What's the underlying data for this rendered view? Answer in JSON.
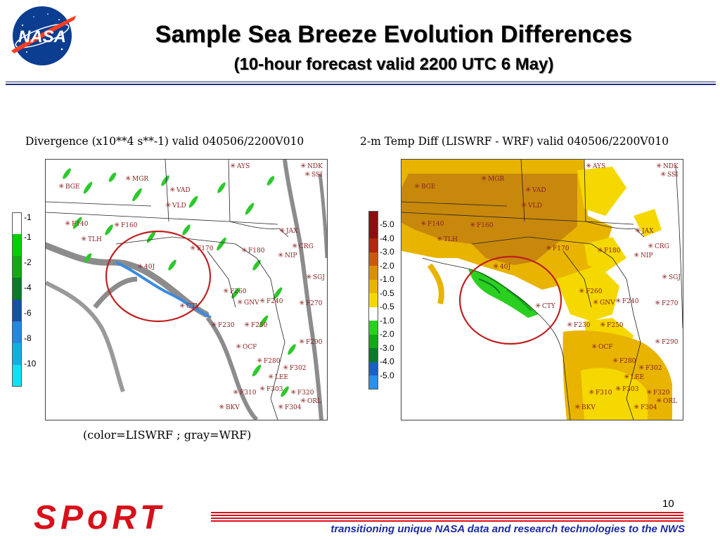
{
  "header": {
    "logo_text": "NASA",
    "title": "Sample Sea Breeze Evolution Differences",
    "subtitle": "(10-hour forecast valid 2200 UTC 6 May)"
  },
  "left_panel": {
    "title": "Divergence (x10**4 s**-1) valid 040506/2200V010",
    "colorbar": {
      "labels": [
        "1",
        "-1",
        "-2",
        "-4",
        "-6",
        "-8",
        "-10"
      ],
      "colors": [
        "#ffffff",
        "#00d000",
        "#14a814",
        "#0c7a2a",
        "#1a50a0",
        "#2288e0",
        "#10b0e0",
        "#10e0f0"
      ]
    }
  },
  "right_panel": {
    "title": "2-m Temp Diff (LISWRF - WRF) valid 040506/2200V010",
    "colorbar": {
      "labels": [
        "5.0",
        "4.0",
        "3.0",
        "2.0",
        "1.0",
        "0.5",
        "-0.5",
        "-1.0",
        "-2.0",
        "-3.0",
        "-4.0",
        "-5.0"
      ],
      "colors": [
        "#8b1010",
        "#b02810",
        "#c85a10",
        "#d9900c",
        "#e8b400",
        "#f5d800",
        "#ffffff",
        "#2ad020",
        "#14a814",
        "#0c7a2a",
        "#1a60c0",
        "#2a90e8"
      ]
    }
  },
  "stations": [
    {
      "id": "AYS"
    },
    {
      "id": "NDK"
    },
    {
      "id": "SSI"
    },
    {
      "id": "MGR"
    },
    {
      "id": "BGE"
    },
    {
      "id": "VAD"
    },
    {
      "id": "VLD"
    },
    {
      "id": "F140"
    },
    {
      "id": "F160"
    },
    {
      "id": "TLH"
    },
    {
      "id": "JAX"
    },
    {
      "id": "CRG"
    },
    {
      "id": "F170"
    },
    {
      "id": "F180"
    },
    {
      "id": "NIP"
    },
    {
      "id": "40J"
    },
    {
      "id": "SGJ"
    },
    {
      "id": "F260"
    },
    {
      "id": "GNV"
    },
    {
      "id": "F240"
    },
    {
      "id": "F270"
    },
    {
      "id": "CTY"
    },
    {
      "id": "F230"
    },
    {
      "id": "F250"
    },
    {
      "id": "F290"
    },
    {
      "id": "OCF"
    },
    {
      "id": "F280"
    },
    {
      "id": "F302"
    },
    {
      "id": "LEE"
    },
    {
      "id": "F310"
    },
    {
      "id": "F303"
    },
    {
      "id": "F320"
    },
    {
      "id": "ORL"
    },
    {
      "id": "BKV"
    },
    {
      "id": "F304"
    }
  ],
  "caption": "(color=LISWRF ; gray=WRF)",
  "footer": {
    "page_number": "10",
    "logo_text": "SPoRT",
    "tagline": "transitioning unique NASA data and research technologies to the NWS"
  },
  "colors": {
    "title_rule": "#1f2d7a",
    "tagline": "#1b2aa8",
    "footer_red": "#d8101a",
    "circle": "#c02020",
    "station_text": "#8b2020"
  }
}
